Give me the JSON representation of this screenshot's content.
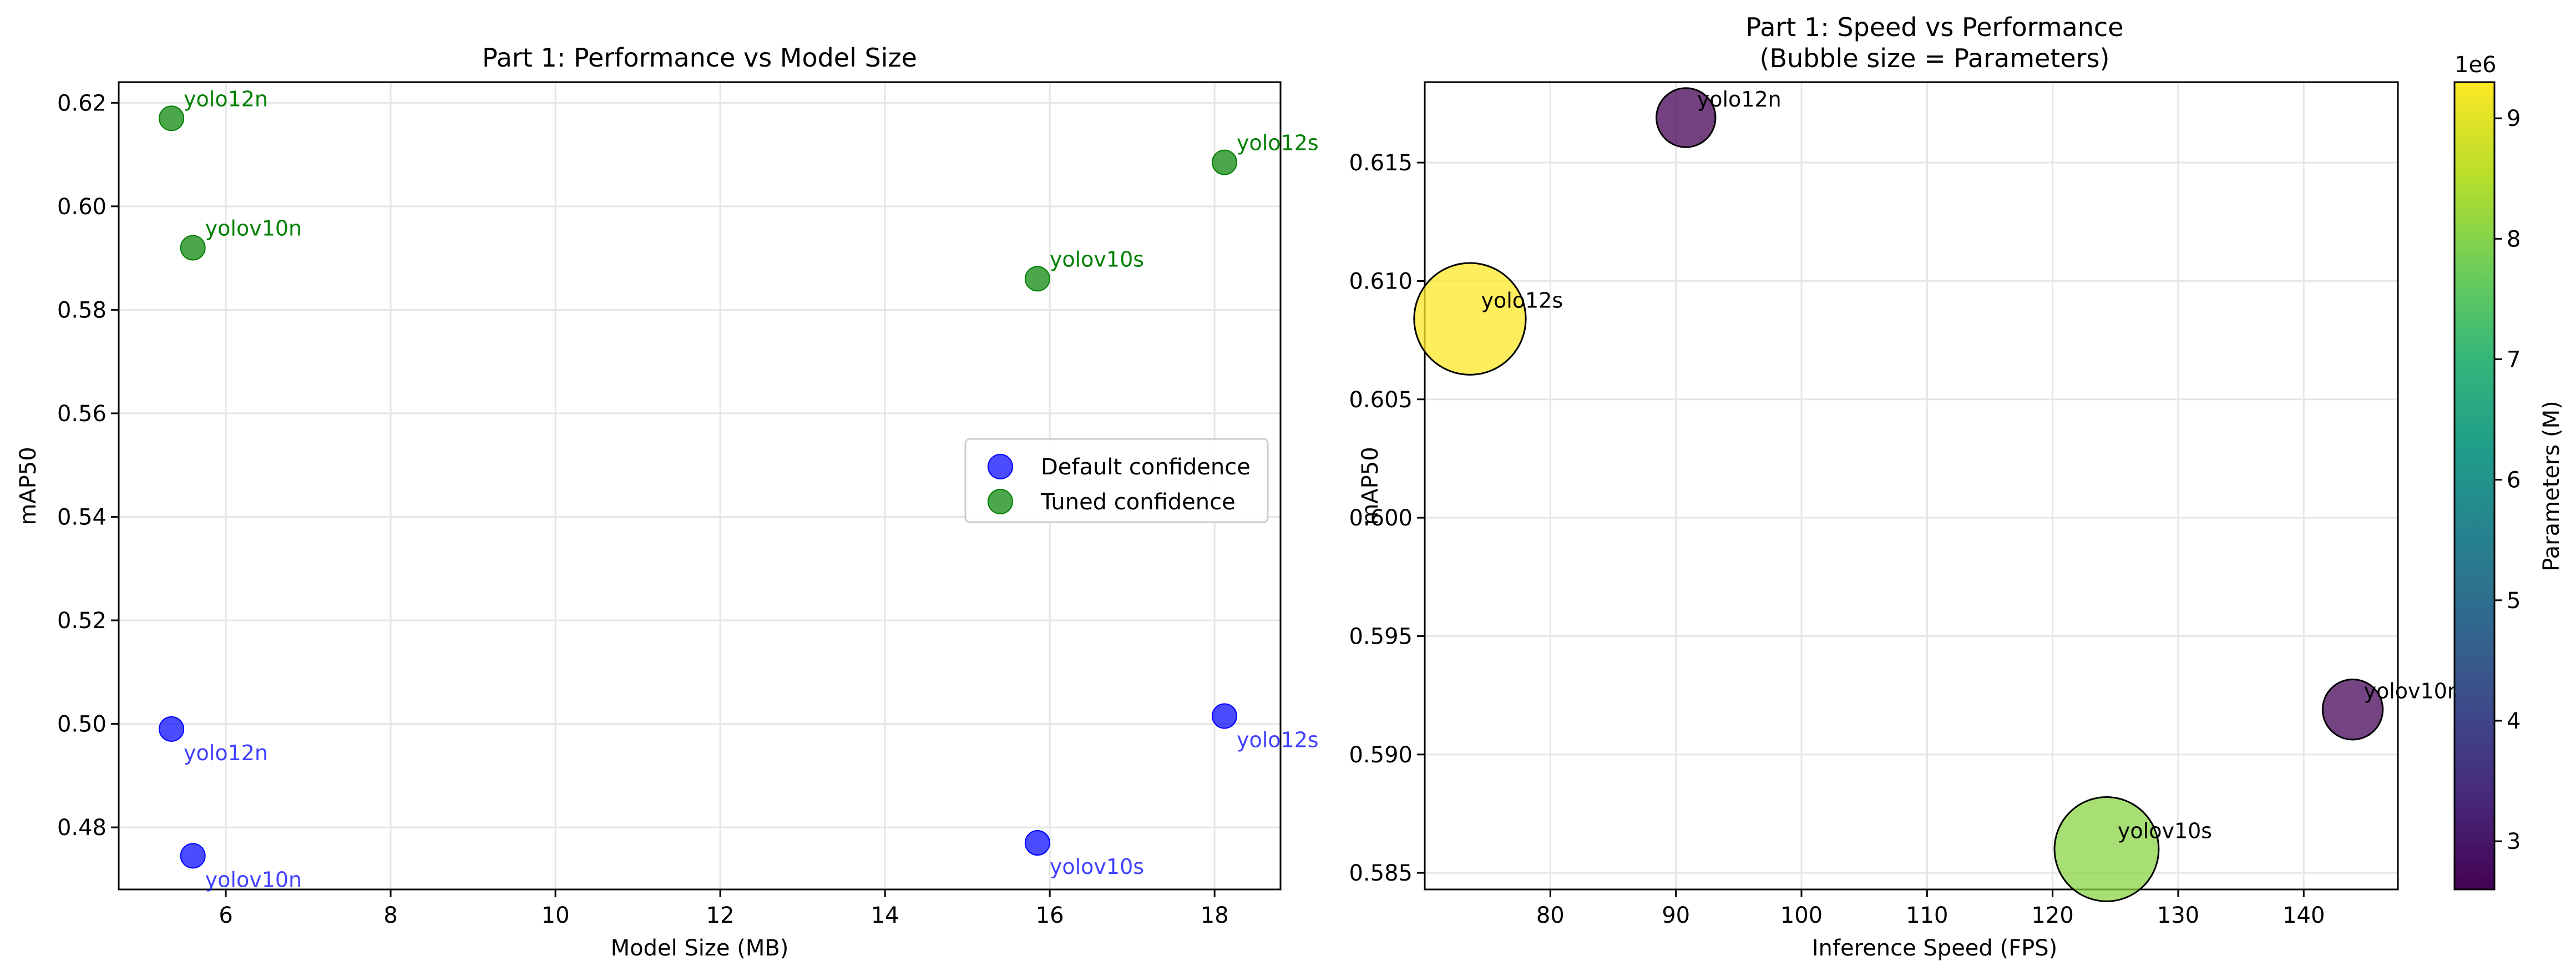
{
  "chart_data": [
    {
      "type": "scatter",
      "title": "Part 1: Performance vs Model Size",
      "xlabel": "Model Size (MB)",
      "ylabel": "mAP50",
      "xlim": [
        4.7,
        18.8
      ],
      "ylim": [
        0.468,
        0.624
      ],
      "xticks": [
        6,
        8,
        10,
        12,
        14,
        16,
        18
      ],
      "yticks": [
        0.48,
        0.5,
        0.52,
        0.54,
        0.56,
        0.58,
        0.6,
        0.62
      ],
      "grid": true,
      "legend": "center-right",
      "series": [
        {
          "name": "Default confidence",
          "color": "#0000ff",
          "points": [
            {
              "label": "yolo12n",
              "x": 5.34,
              "y": 0.499
            },
            {
              "label": "yolov10n",
              "x": 5.6,
              "y": 0.4745
            },
            {
              "label": "yolov10s",
              "x": 15.85,
              "y": 0.477
            },
            {
              "label": "yolo12s",
              "x": 18.12,
              "y": 0.5015
            }
          ]
        },
        {
          "name": "Tuned confidence",
          "color": "#008000",
          "points": [
            {
              "label": "yolo12n",
              "x": 5.34,
              "y": 0.617
            },
            {
              "label": "yolov10n",
              "x": 5.6,
              "y": 0.592
            },
            {
              "label": "yolov10s",
              "x": 15.85,
              "y": 0.586
            },
            {
              "label": "yolo12s",
              "x": 18.12,
              "y": 0.6085
            }
          ]
        }
      ]
    },
    {
      "type": "scatter",
      "title": "Part 1: Speed vs Performance",
      "subtitle": "(Bubble size = Parameters)",
      "xlabel": "Inference Speed (FPS)",
      "ylabel": "mAP50",
      "xlim": [
        70,
        147.5
      ],
      "ylim": [
        0.5843,
        0.6184
      ],
      "xticks": [
        80,
        90,
        100,
        110,
        120,
        130,
        140
      ],
      "yticks": [
        0.585,
        0.59,
        0.595,
        0.6,
        0.605,
        0.61,
        0.615
      ],
      "grid": true,
      "colorbar": {
        "label": "Parameters (M)",
        "offset_text": "1e6",
        "range": [
          2.6,
          9.3
        ],
        "ticks": [
          3,
          4,
          5,
          6,
          7,
          8,
          9
        ],
        "colormap": "viridis"
      },
      "points": [
        {
          "label": "yolo12n",
          "x": 90.8,
          "y": 0.6169,
          "params": 2.6
        },
        {
          "label": "yolo12s",
          "x": 73.6,
          "y": 0.6084,
          "params": 9.3
        },
        {
          "label": "yolov10n",
          "x": 143.9,
          "y": 0.5919,
          "params": 2.7
        },
        {
          "label": "yolov10s",
          "x": 124.3,
          "y": 0.586,
          "params": 8.1
        }
      ]
    }
  ]
}
